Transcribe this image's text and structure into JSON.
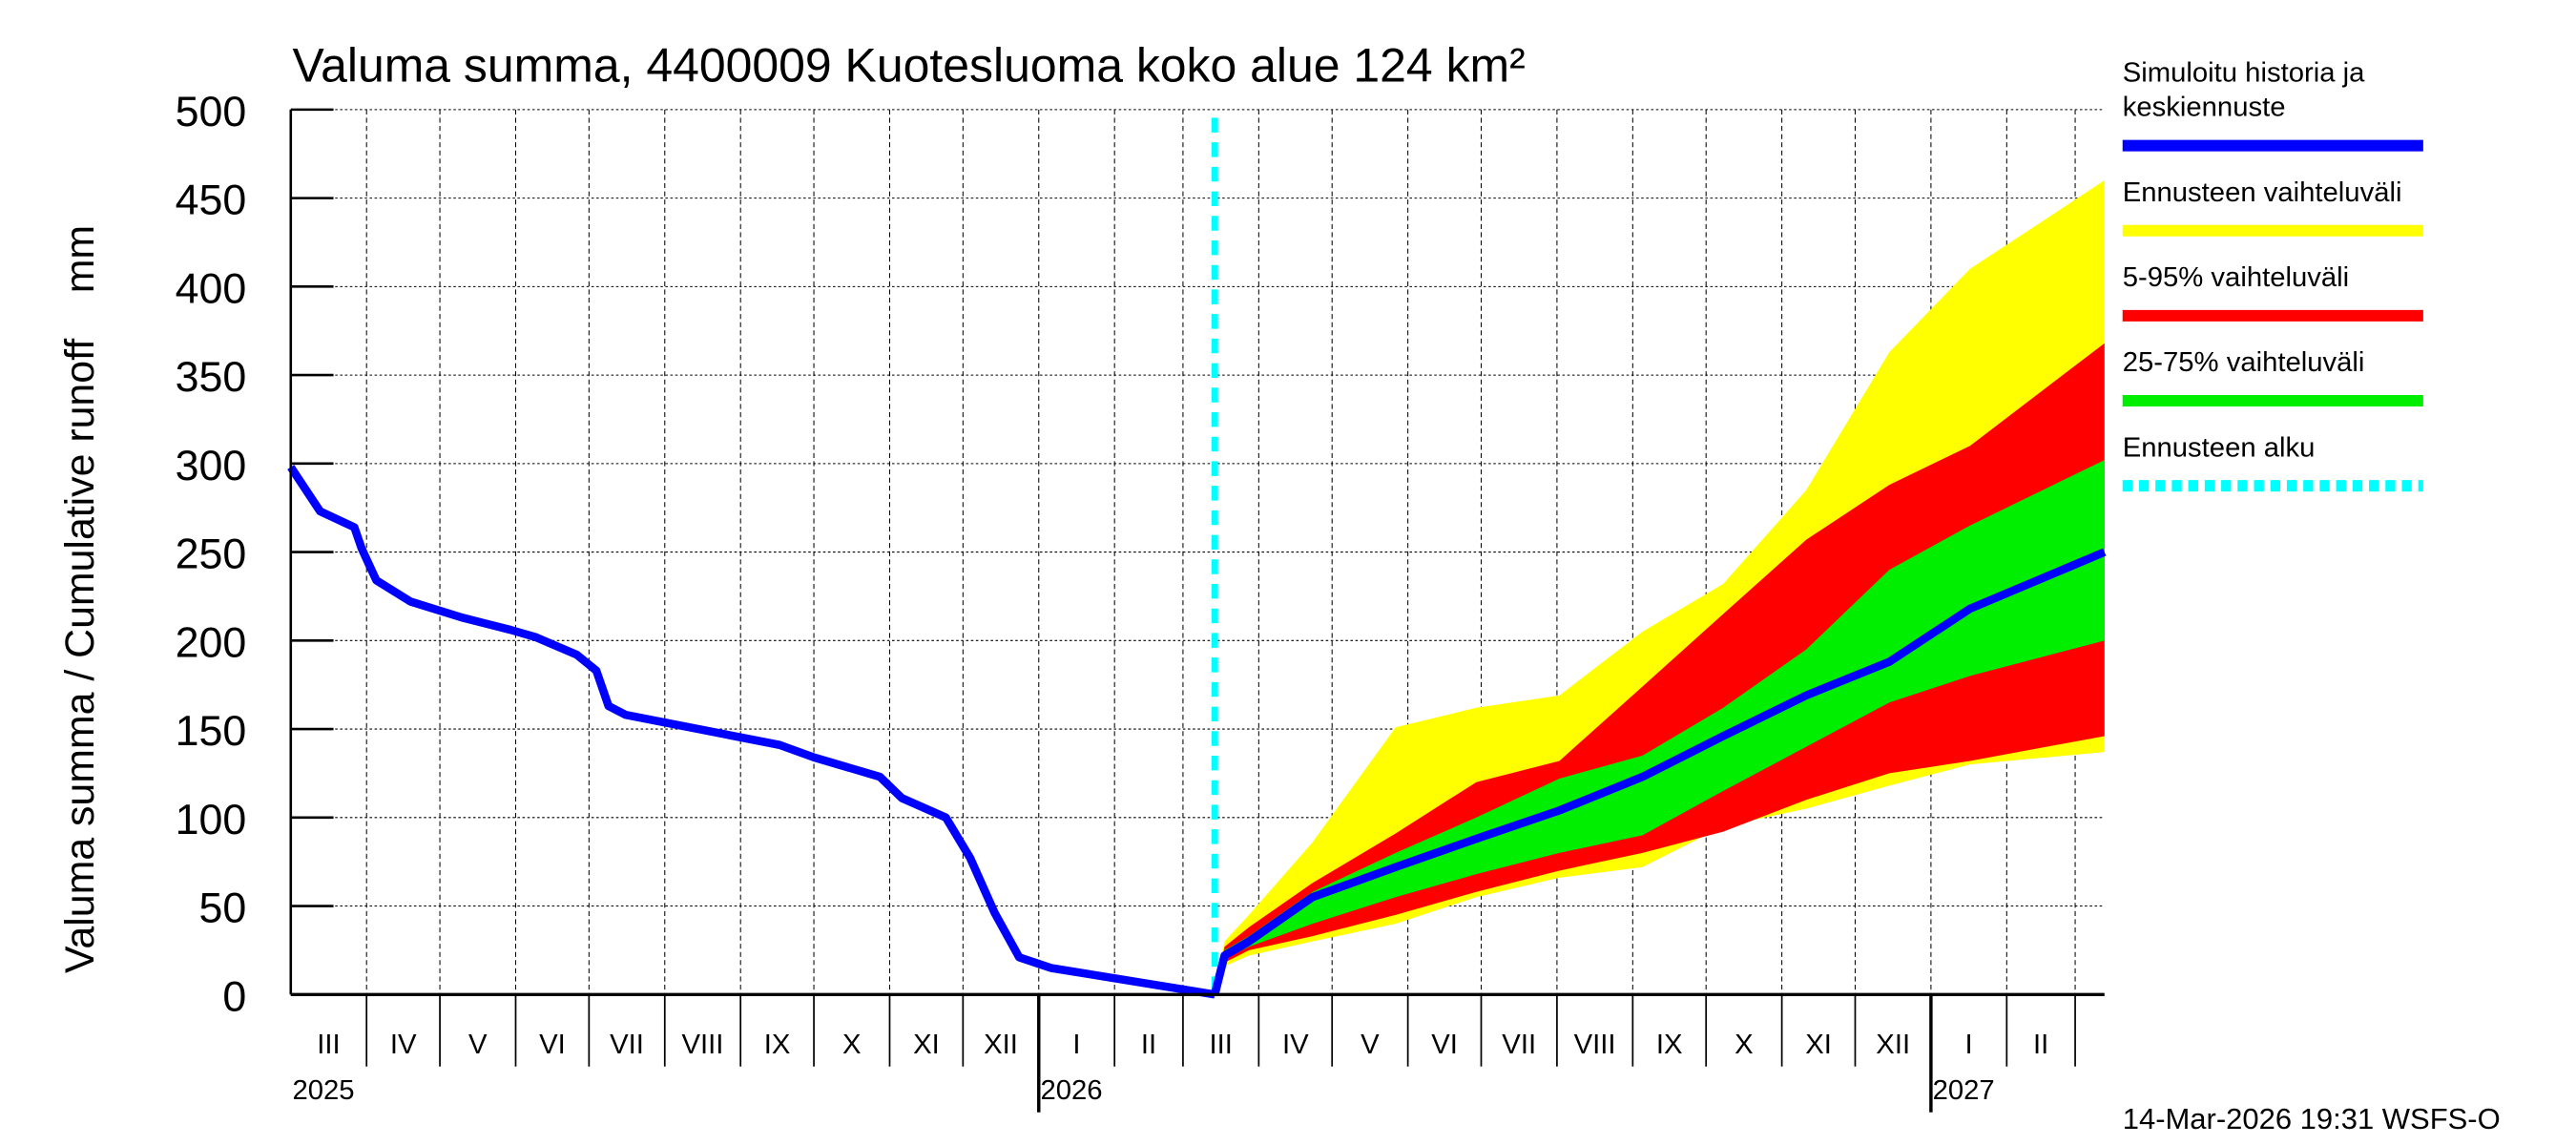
{
  "chart_data": {
    "type": "area",
    "title": "Valuma summa, 4400009 Kuotesluoma koko alue 124 km²",
    "ylabel": "Valuma summa / Cumulative runoff    mm",
    "ylim": [
      0,
      500
    ],
    "yticks": [
      "0",
      "50",
      "100",
      "150",
      "200",
      "250",
      "300",
      "350",
      "400",
      "450",
      "500"
    ],
    "xlim": [
      "2025-03-01",
      "2027-03-13"
    ],
    "grid": true,
    "legend_placement": "right",
    "forecast_start": "2026-03-14",
    "months": [
      {
        "start": "2025-03-01",
        "label": "III"
      },
      {
        "start": "2025-04-01",
        "label": "IV"
      },
      {
        "start": "2025-05-01",
        "label": "V"
      },
      {
        "start": "2025-06-01",
        "label": "VI"
      },
      {
        "start": "2025-07-01",
        "label": "VII"
      },
      {
        "start": "2025-08-01",
        "label": "VIII"
      },
      {
        "start": "2025-09-01",
        "label": "IX"
      },
      {
        "start": "2025-10-01",
        "label": "X"
      },
      {
        "start": "2025-11-01",
        "label": "XI"
      },
      {
        "start": "2025-12-01",
        "label": "XII"
      },
      {
        "start": "2026-01-01",
        "label": "I"
      },
      {
        "start": "2026-02-01",
        "label": "II"
      },
      {
        "start": "2026-03-01",
        "label": "III"
      },
      {
        "start": "2026-04-01",
        "label": "IV"
      },
      {
        "start": "2026-05-01",
        "label": "V"
      },
      {
        "start": "2026-06-01",
        "label": "VI"
      },
      {
        "start": "2026-07-01",
        "label": "VII"
      },
      {
        "start": "2026-08-01",
        "label": "VIII"
      },
      {
        "start": "2026-09-01",
        "label": "IX"
      },
      {
        "start": "2026-10-01",
        "label": "X"
      },
      {
        "start": "2026-11-01",
        "label": "XI"
      },
      {
        "start": "2026-12-01",
        "label": "XII"
      },
      {
        "start": "2027-01-01",
        "label": "I"
      },
      {
        "start": "2027-02-01",
        "label": "II"
      },
      {
        "start": "2027-03-01",
        "label": ""
      }
    ],
    "years": [
      {
        "date": "2025-03-01",
        "label": "2025"
      },
      {
        "date": "2026-01-01",
        "label": "2026"
      },
      {
        "date": "2027-01-01",
        "label": "2027"
      }
    ],
    "history": [
      [
        "2025-03-01",
        298
      ],
      [
        "2025-03-13",
        273
      ],
      [
        "2025-03-27",
        264
      ],
      [
        "2025-03-30",
        252
      ],
      [
        "2025-04-05",
        234
      ],
      [
        "2025-04-19",
        222
      ],
      [
        "2025-05-10",
        213
      ],
      [
        "2025-05-30",
        206
      ],
      [
        "2025-06-09",
        202
      ],
      [
        "2025-06-26",
        192
      ],
      [
        "2025-07-04",
        183
      ],
      [
        "2025-07-09",
        163
      ],
      [
        "2025-07-16",
        158
      ],
      [
        "2025-08-11",
        151
      ],
      [
        "2025-09-17",
        141
      ],
      [
        "2025-10-01",
        134
      ],
      [
        "2025-10-28",
        123
      ],
      [
        "2025-11-06",
        111
      ],
      [
        "2025-11-24",
        100
      ],
      [
        "2025-12-04",
        77
      ],
      [
        "2025-12-14",
        46
      ],
      [
        "2025-12-24",
        21
      ],
      [
        "2026-01-06",
        15
      ],
      [
        "2026-03-14",
        0
      ]
    ],
    "forecast": {
      "dates": [
        "2026-03-14",
        "2026-03-18",
        "2026-03-28",
        "2026-04-23",
        "2026-05-27",
        "2026-06-29",
        "2026-08-02",
        "2026-09-05",
        "2026-10-08",
        "2026-11-11",
        "2026-12-15",
        "2027-01-17",
        "2027-03-13"
      ],
      "min": [
        0,
        16,
        22,
        30,
        40,
        55,
        66,
        72,
        95,
        105,
        118,
        130,
        137
      ],
      "p5": [
        0,
        18,
        25,
        33,
        45,
        58,
        70,
        80,
        92,
        110,
        125,
        132,
        146
      ],
      "p25": [
        0,
        20,
        27,
        40,
        55,
        68,
        80,
        90,
        115,
        140,
        165,
        180,
        200
      ],
      "median": [
        0,
        22,
        30,
        55,
        72,
        88,
        104,
        123,
        146,
        169,
        188,
        218,
        250
      ],
      "p75": [
        0,
        25,
        33,
        58,
        80,
        100,
        122,
        135,
        162,
        195,
        240,
        265,
        302
      ],
      "p95": [
        0,
        27,
        38,
        63,
        91,
        120,
        132,
        174,
        215,
        257,
        288,
        310,
        368
      ],
      "max": [
        0,
        30,
        45,
        86,
        151,
        162,
        169,
        205,
        232,
        285,
        363,
        410,
        460
      ]
    },
    "legend": [
      {
        "label": "Simuloitu historia ja",
        "label2": "keskiennuste",
        "color": "#0000ff",
        "style": "solid"
      },
      {
        "label": "Ennusteen vaihteluväli",
        "color": "#ffff00",
        "style": "solid"
      },
      {
        "label": "5-95% vaihteluväli",
        "color": "#ff0000",
        "style": "solid"
      },
      {
        "label": "25-75% vaihteluväli",
        "color": "#00ee00",
        "style": "solid"
      },
      {
        "label": "Ennusteen alku",
        "color": "#00ffff",
        "style": "dotted"
      }
    ],
    "footer": "14-Mar-2026 19:31 WSFS-O"
  }
}
